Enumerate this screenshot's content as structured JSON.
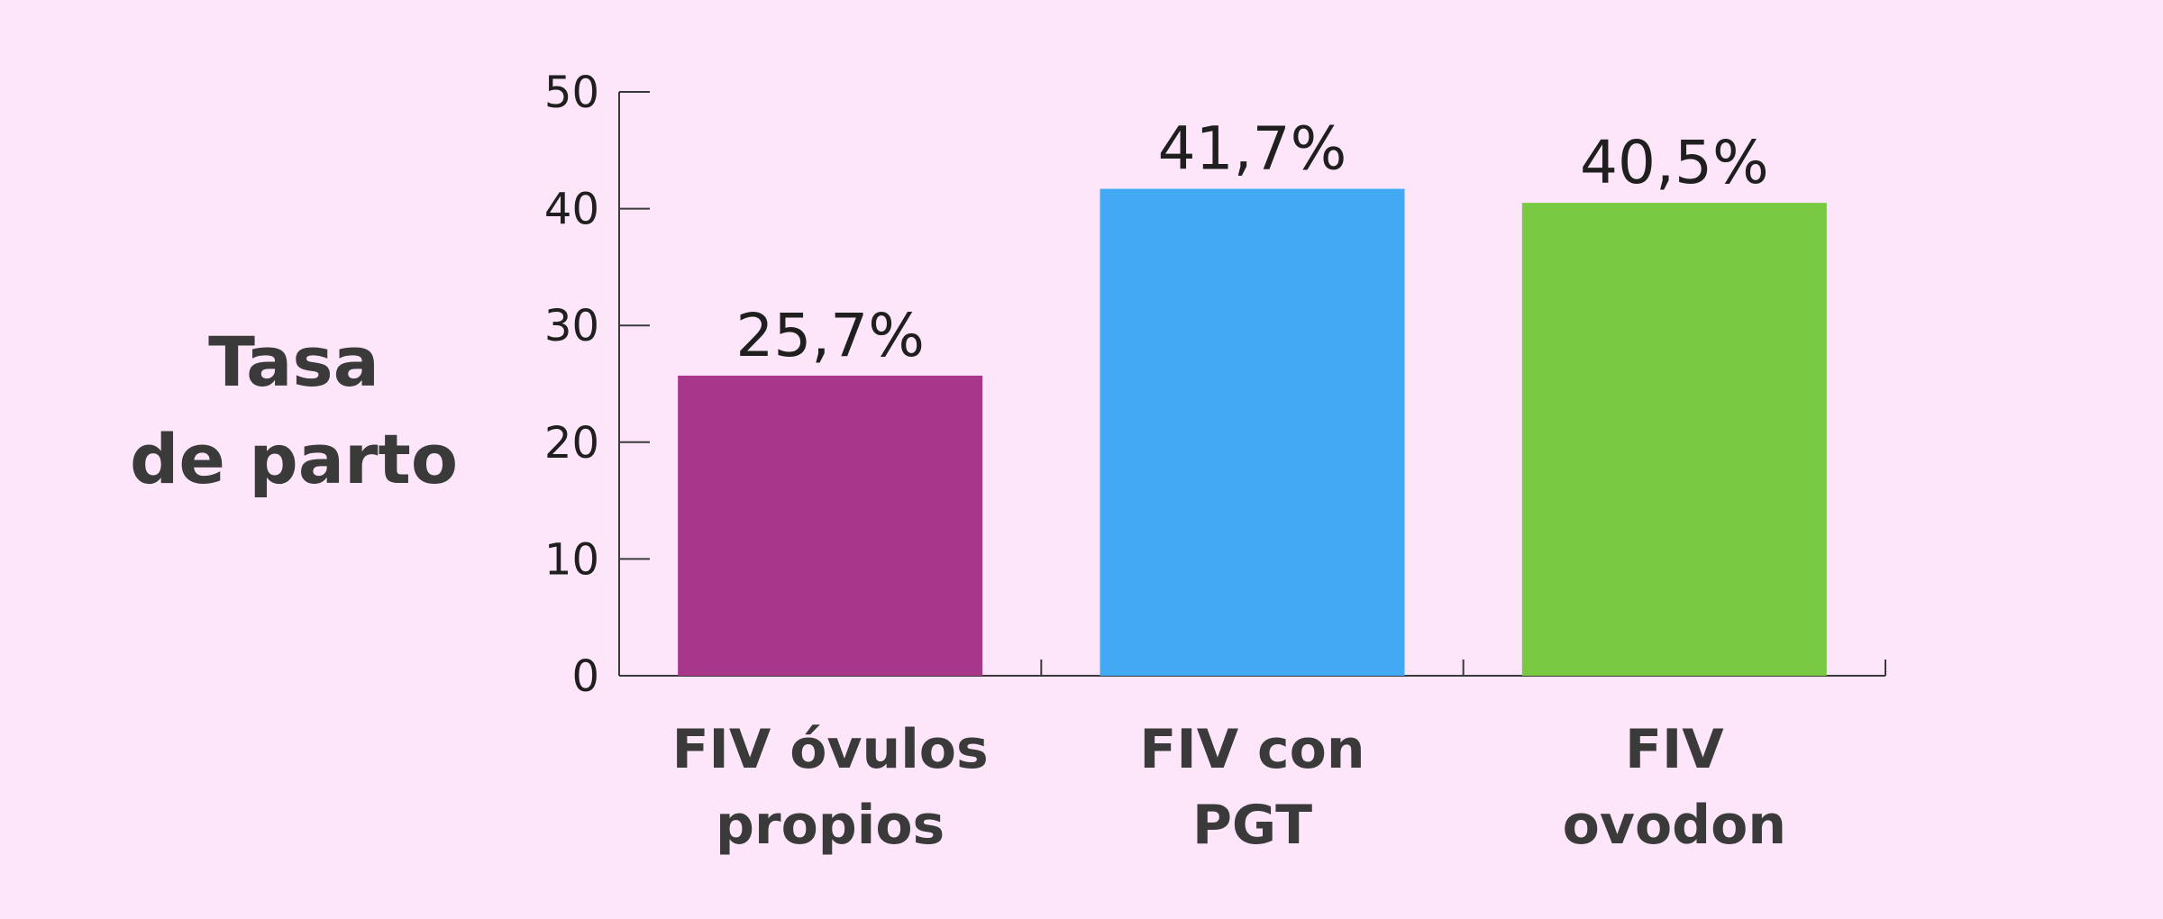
{
  "chart_data": {
    "type": "bar",
    "ylabel": [
      "Tasa",
      "de parto"
    ],
    "categories": [
      [
        "FIV óvulos",
        "propios"
      ],
      [
        "FIV con",
        "PGT"
      ],
      [
        "FIV",
        "ovodon"
      ]
    ],
    "values": [
      25.7,
      41.7,
      40.5
    ],
    "value_labels": [
      "25,7%",
      "41,7%",
      "40,5%"
    ],
    "colors": [
      "#a8368a",
      "#42a9f4",
      "#7ac943"
    ],
    "ylim": [
      0,
      50
    ],
    "yticks": [
      0,
      10,
      20,
      30,
      40,
      50
    ],
    "grid": false,
    "legend": "none"
  }
}
